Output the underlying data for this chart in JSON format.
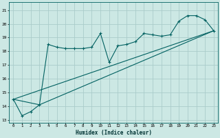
{
  "xlabel": "Humidex (Indice chaleur)",
  "background_color": "#cce8e4",
  "grid_color": "#aaccca",
  "line_color": "#006060",
  "xlim": [
    -0.5,
    23.5
  ],
  "ylim": [
    12.8,
    21.6
  ],
  "yticks": [
    13,
    14,
    15,
    16,
    17,
    18,
    19,
    20,
    21
  ],
  "xticks": [
    0,
    1,
    2,
    3,
    4,
    5,
    6,
    7,
    8,
    9,
    10,
    11,
    12,
    13,
    14,
    15,
    16,
    17,
    18,
    19,
    20,
    21,
    22,
    23
  ],
  "series1_x": [
    0,
    1,
    2,
    3,
    4,
    5,
    6,
    7,
    8,
    9,
    10,
    11,
    12,
    13,
    14,
    15,
    16,
    17,
    18,
    19,
    20,
    21,
    22,
    23
  ],
  "series1_y": [
    14.5,
    13.3,
    13.6,
    14.1,
    18.5,
    18.3,
    18.2,
    18.2,
    18.2,
    18.3,
    19.3,
    17.2,
    18.4,
    18.5,
    18.7,
    19.3,
    19.2,
    19.1,
    19.2,
    20.2,
    20.6,
    20.6,
    20.3,
    19.5
  ],
  "series2_x": [
    0,
    23
  ],
  "series2_y": [
    14.5,
    19.5
  ],
  "series3_x": [
    0,
    3,
    23
  ],
  "series3_y": [
    14.5,
    14.1,
    19.5
  ]
}
